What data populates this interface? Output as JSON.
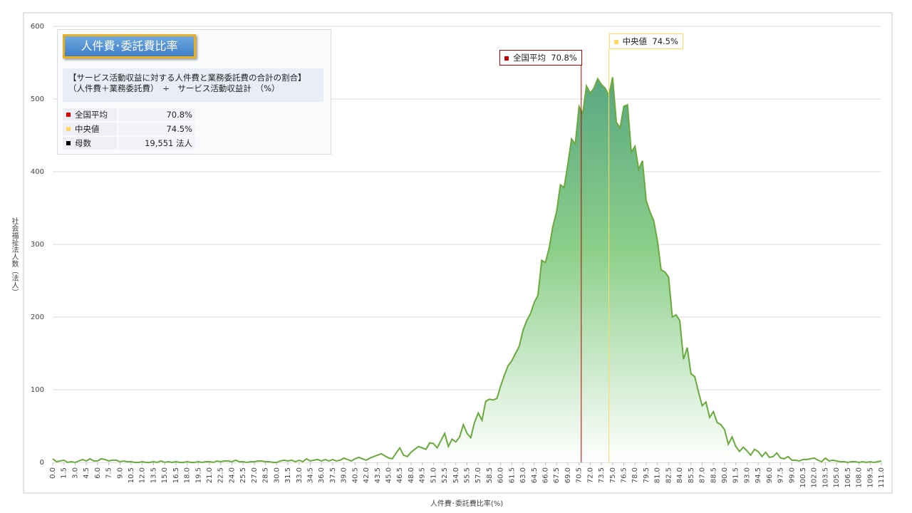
{
  "chart_data": {
    "type": "area",
    "xlabel": "人件費･委託費比率(%)",
    "ylabel": "社会福祉法人数（法人）",
    "color": "#6aaa3c",
    "grid": true,
    "xlim": [
      0,
      111
    ],
    "ylim": [
      0,
      600
    ],
    "yticks": [
      0,
      100,
      200,
      300,
      400,
      500,
      600
    ],
    "xticks": [
      {
        "value": 0,
        "label": "0.0"
      },
      1.5,
      {
        "value": 3,
        "label": "3.0"
      },
      4.5,
      {
        "value": 6,
        "label": "6.0"
      },
      7.5,
      {
        "value": 9,
        "label": "9.0"
      },
      10.5,
      {
        "value": 12,
        "label": "12.0"
      },
      13.5,
      {
        "value": 15,
        "label": "15.0"
      },
      16.5,
      {
        "value": 18,
        "label": "18.0"
      },
      19.5,
      {
        "value": 21,
        "label": "21.0"
      },
      22.5,
      {
        "value": 24,
        "label": "24.0"
      },
      25.5,
      {
        "value": 27,
        "label": "27.0"
      },
      28.5,
      {
        "value": 30,
        "label": "30.0"
      },
      31.5,
      {
        "value": 33,
        "label": "33.0"
      },
      34.5,
      {
        "value": 36,
        "label": "36.0"
      },
      37.5,
      {
        "value": 39,
        "label": "39.0"
      },
      40.5,
      {
        "value": 42,
        "label": "42.0"
      },
      43.5,
      {
        "value": 45,
        "label": "45.0"
      },
      46.5,
      {
        "value": 48,
        "label": "48.0"
      },
      49.5,
      {
        "value": 51,
        "label": "51.0"
      },
      52.5,
      {
        "value": 54,
        "label": "54.0"
      },
      55.5,
      {
        "value": 57,
        "label": "57.0"
      },
      58.5,
      {
        "value": 60,
        "label": "60.0"
      },
      61.5,
      {
        "value": 63,
        "label": "63.0"
      },
      64.5,
      {
        "value": 66,
        "label": "66.0"
      },
      67.5,
      {
        "value": 69,
        "label": "69.0"
      },
      70.5,
      {
        "value": 72,
        "label": "72.0"
      },
      73.5,
      {
        "value": 75,
        "label": "75.0"
      },
      76.5,
      {
        "value": 78,
        "label": "78.0"
      },
      79.5,
      {
        "value": 81,
        "label": "81.0"
      },
      82.5,
      {
        "value": 84,
        "label": "84.0"
      },
      85.5,
      {
        "value": 87,
        "label": "87.0"
      },
      88.5,
      {
        "value": 90,
        "label": "90.0"
      },
      91.5,
      {
        "value": 93,
        "label": "93.0"
      },
      94.5,
      {
        "value": 96,
        "label": "96.0"
      },
      97.5,
      {
        "value": 99,
        "label": "99.0"
      },
      100.5,
      {
        "value": 102,
        "label": "102.0"
      },
      103.5,
      {
        "value": 105,
        "label": "105.0"
      },
      106.5,
      {
        "value": 108,
        "label": "108.0"
      },
      109.5,
      {
        "value": 111,
        "label": "111.0"
      }
    ],
    "x": [
      0,
      0.5,
      1,
      1.5,
      2,
      2.5,
      3,
      3.5,
      4,
      4.5,
      5,
      5.5,
      6,
      6.5,
      7,
      7.5,
      8,
      8.5,
      9,
      9.5,
      10,
      10.5,
      11,
      11.5,
      12,
      12.5,
      13,
      13.5,
      14,
      14.5,
      15,
      15.5,
      16,
      16.5,
      17,
      17.5,
      18,
      18.5,
      19,
      19.5,
      20,
      20.5,
      21,
      21.5,
      22,
      22.5,
      23,
      23.5,
      24,
      24.5,
      25,
      25.5,
      26,
      26.5,
      27,
      27.5,
      28,
      28.5,
      29,
      29.5,
      30,
      30.5,
      31,
      31.5,
      32,
      32.5,
      33,
      33.5,
      34,
      34.5,
      35,
      35.5,
      36,
      36.5,
      37,
      37.5,
      38,
      38.5,
      39,
      39.5,
      40,
      40.5,
      41,
      41.5,
      42,
      42.5,
      43,
      43.5,
      44,
      44.5,
      45,
      45.5,
      46,
      46.5,
      47,
      47.5,
      48,
      48.5,
      49,
      49.5,
      50,
      50.5,
      51,
      51.5,
      52,
      52.5,
      53,
      53.5,
      54,
      54.5,
      55,
      55.5,
      56,
      56.5,
      57,
      57.5,
      58,
      58.5,
      59,
      59.5,
      60,
      60.5,
      61,
      61.5,
      62,
      62.5,
      63,
      63.5,
      64,
      64.5,
      65,
      65.5,
      66,
      66.5,
      67,
      67.5,
      68,
      68.5,
      69,
      69.5,
      70,
      70.5,
      71,
      71.5,
      72,
      72.5,
      73,
      73.5,
      74,
      74.5,
      75,
      75.5,
      76,
      76.5,
      77,
      77.5,
      78,
      78.5,
      79,
      79.5,
      80,
      80.5,
      81,
      81.5,
      82,
      82.5,
      83,
      83.5,
      84,
      84.5,
      85,
      85.5,
      86,
      86.5,
      87,
      87.5,
      88,
      88.5,
      89,
      89.5,
      90,
      90.5,
      91,
      91.5,
      92,
      92.5,
      93,
      93.5,
      94,
      94.5,
      95,
      95.5,
      96,
      96.5,
      97,
      97.5,
      98,
      98.5,
      99,
      99.5,
      100,
      100.5,
      101,
      101.5,
      102,
      102.5,
      103,
      103.5,
      104,
      104.5,
      105,
      105.5,
      106,
      106.5,
      107,
      107.5,
      108,
      108.5,
      109,
      109.5,
      110,
      110.5,
      111
    ],
    "values": [
      5,
      1,
      2,
      3,
      0,
      1,
      0,
      2,
      4,
      2,
      5,
      2,
      2,
      5,
      4,
      2,
      3,
      3,
      1,
      2,
      1,
      1,
      0,
      0,
      1,
      0,
      0,
      1,
      0,
      2,
      0,
      1,
      0,
      1,
      0,
      0,
      1,
      0,
      0,
      1,
      0,
      1,
      1,
      0,
      2,
      1,
      2,
      2,
      1,
      3,
      1,
      1,
      0,
      1,
      1,
      2,
      2,
      1,
      1,
      0,
      0,
      2,
      3,
      2,
      3,
      1,
      3,
      1,
      5,
      2,
      3,
      4,
      2,
      4,
      2,
      4,
      2,
      3,
      6,
      4,
      2,
      5,
      7,
      5,
      3,
      6,
      8,
      10,
      12,
      9,
      6,
      5,
      13,
      20,
      10,
      8,
      14,
      18,
      22,
      20,
      18,
      27,
      26,
      20,
      30,
      40,
      22,
      32,
      28,
      35,
      52,
      40,
      34,
      55,
      68,
      58,
      84,
      87,
      86,
      88,
      105,
      120,
      133,
      140,
      150,
      160,
      182,
      195,
      205,
      220,
      230,
      278,
      275,
      295,
      325,
      345,
      382,
      378,
      410,
      445,
      438,
      490,
      480,
      518,
      508,
      515,
      528,
      520,
      515,
      505,
      530,
      468,
      460,
      490,
      492,
      427,
      435,
      403,
      415,
      360,
      345,
      333,
      305,
      265,
      262,
      255,
      200,
      203,
      195,
      142,
      158,
      122,
      118,
      97,
      78,
      83,
      62,
      70,
      55,
      52,
      45,
      25,
      35,
      22,
      15,
      21,
      16,
      10,
      18,
      15,
      8,
      14,
      7,
      8,
      13,
      6,
      5,
      8,
      3,
      3,
      2,
      4,
      4,
      5,
      6,
      3,
      1,
      6,
      2,
      3,
      2,
      1,
      1,
      0,
      1,
      1,
      0,
      1,
      0,
      1,
      0,
      1,
      2
    ],
    "reference_lines": [
      {
        "name": "全国平均",
        "value": 70.8,
        "value_label": "70.8%",
        "color": "#c00000"
      },
      {
        "name": "中央値",
        "value": 74.5,
        "value_label": "74.5%",
        "color": "#ffd966"
      }
    ],
    "info": {
      "title": "人件費･委託費比率",
      "description": [
        "【サービス活動収益に対する人件費と業務委託費の合計の割合】",
        "（人件費＋業務委託費）　÷　サービス活動収益計　（%）"
      ],
      "rows": [
        {
          "label": "全国平均",
          "value": "70.8%",
          "color": "#e00000"
        },
        {
          "label": "中央値",
          "value": "74.5%",
          "color": "#ffd966"
        },
        {
          "label": "母数",
          "value": "19,551  法人",
          "color": "#000000"
        }
      ]
    }
  }
}
